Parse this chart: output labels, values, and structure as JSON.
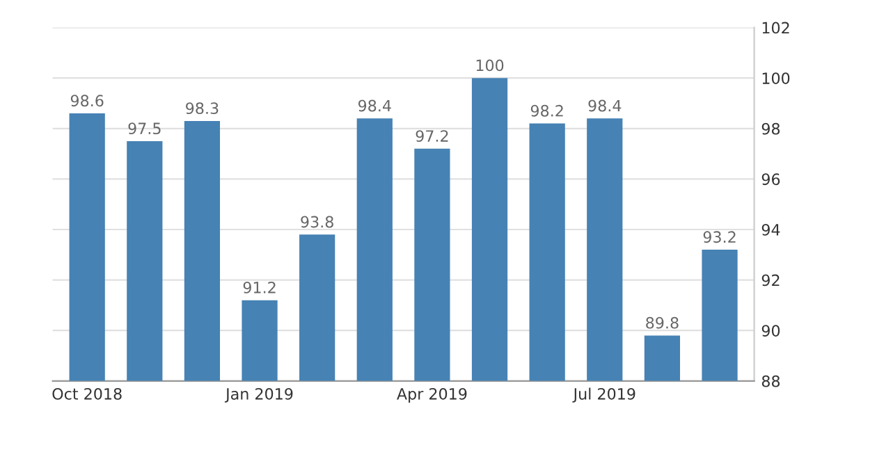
{
  "chart_data": {
    "type": "bar",
    "categories": [
      "Oct 2018",
      null,
      null,
      "Jan 2019",
      null,
      null,
      "Apr 2019",
      null,
      null,
      "Jul 2019",
      null,
      null
    ],
    "values": [
      98.6,
      97.5,
      98.3,
      91.2,
      93.8,
      98.4,
      97.2,
      100,
      98.2,
      98.4,
      89.8,
      93.2
    ],
    "color": "#4682b4",
    "ylim": [
      88,
      102
    ],
    "yticks": [
      88,
      90,
      92,
      94,
      96,
      98,
      100,
      102
    ],
    "grid": "y",
    "data_labels": true
  }
}
